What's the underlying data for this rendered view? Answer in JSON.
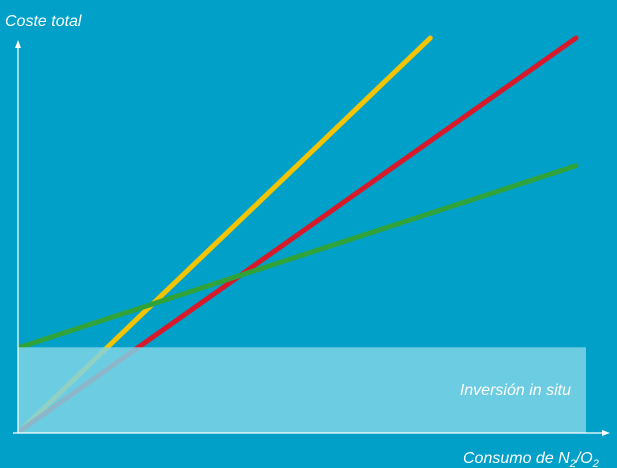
{
  "chart_data": {
    "type": "line",
    "title": "",
    "ylabel": "Coste total",
    "xlabel": "Consumo de N",
    "xlabel_sub1": "2",
    "xlabel_mid": "/O",
    "xlabel_sub2": "2",
    "xlim": [
      0,
      100
    ],
    "ylim": [
      0,
      100
    ],
    "grid": false,
    "legend": "none",
    "band": {
      "label": "Inversión in situ",
      "y_top": 21.3,
      "color": "#7fd3e6"
    },
    "series": [
      {
        "color": "#f5c400",
        "x": [
          0,
          73.8
        ],
        "y": [
          0,
          100
        ]
      },
      {
        "color": "#d8192a",
        "x": [
          0,
          100
        ],
        "y": [
          0,
          100
        ]
      },
      {
        "color": "#2fa33a",
        "x": [
          0,
          100
        ],
        "y": [
          21.3,
          67.5
        ]
      }
    ]
  }
}
